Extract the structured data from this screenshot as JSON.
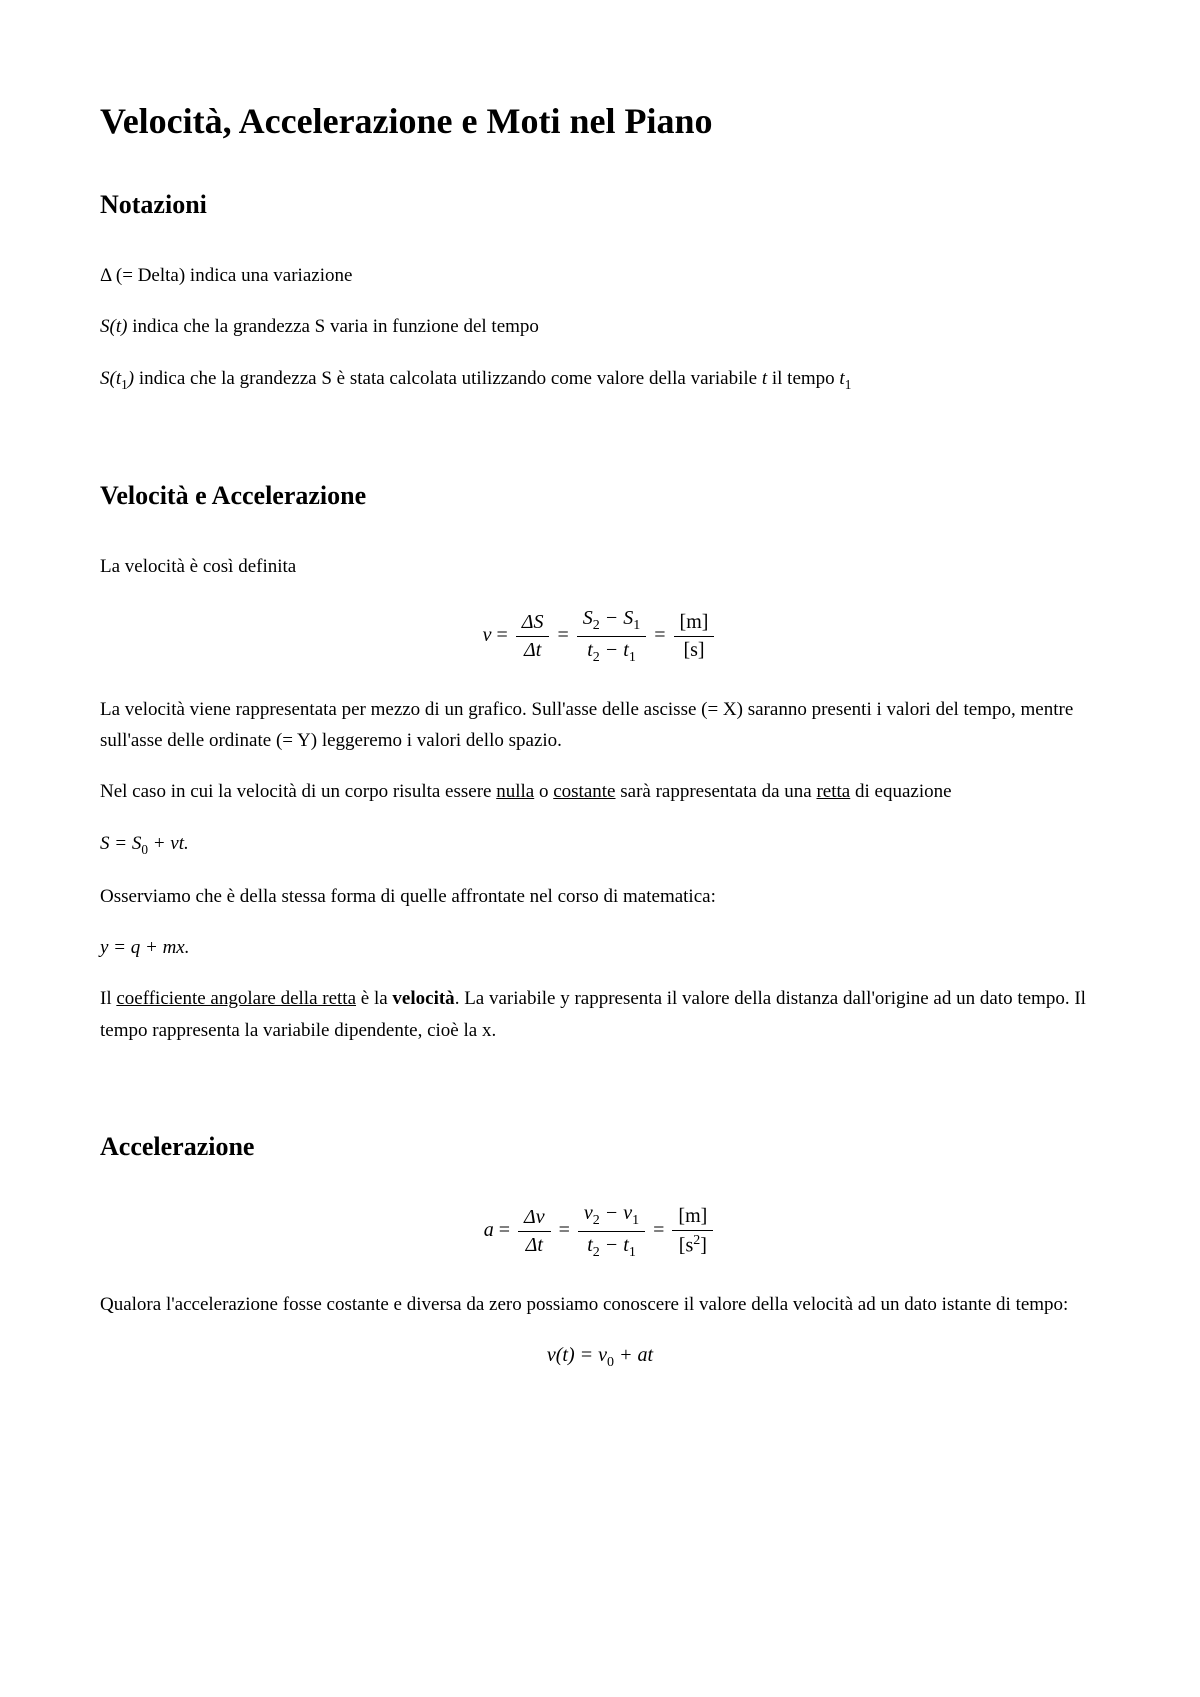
{
  "title": "Velocità, Accelerazione e Moti nel Piano",
  "sections": {
    "notazioni": {
      "heading": "Notazioni",
      "p1_prefix": "Δ (= Delta)  indica una variazione",
      "p2_a": "S",
      "p2_b": "(t)",
      "p2_text": " indica che la grandezza S varia in funzione del tempo",
      "p3_a": "S",
      "p3_b": "(t",
      "p3_sub": "1",
      "p3_c": ")",
      "p3_text_a": " indica che la grandezza S è stata calcolata utilizzando come valore della variabile ",
      "p3_var": "t",
      "p3_text_b": " il tempo ",
      "p3_var2": "t",
      "p3_sub2": "1"
    },
    "velocita": {
      "heading": "Velocità e Accelerazione",
      "intro": "La velocità è così definita",
      "eq": {
        "lhs": "v",
        "eq": " = ",
        "f1_num": "ΔS",
        "f1_den": "Δt",
        "f2_num_a": "S",
        "f2_num_sub1": "2",
        "f2_num_mid": " − S",
        "f2_num_sub2": "1",
        "f2_den_a": "t",
        "f2_den_sub1": "2",
        "f2_den_mid": " − t",
        "f2_den_sub2": "1",
        "f3_num": "[m]",
        "f3_den": "[s]"
      },
      "p1": "La velocità viene rappresentata per mezzo di un grafico. Sull'asse delle ascisse (= X) saranno presenti i valori del tempo, mentre sull'asse delle ordinate (= Y) leggeremo i valori dello spazio.",
      "p2_a": "Nel caso in cui la velocità di un corpo risulta essere ",
      "p2_u1": "nulla",
      "p2_b": " o ",
      "p2_u2": "costante",
      "p2_c": " sarà rappresentata da una ",
      "p2_u3": "retta",
      "p2_d": " di equazione",
      "eq2_a": "S = S",
      "eq2_sub": "0",
      "eq2_b": " + vt.",
      "p3": "Osserviamo che è della stessa forma di quelle affrontate nel corso di matematica:",
      "eq3": "y = q + mx.",
      "p4_a": "Il ",
      "p4_u": "coefficiente angolare della retta",
      "p4_b": " è la ",
      "p4_bold": "velocità",
      "p4_c": ". La variabile y rappresenta il valore della distanza dall'origine ad un dato tempo. Il tempo rappresenta la variabile dipendente, cioè la x."
    },
    "accel": {
      "heading": "Accelerazione",
      "eq": {
        "lhs": "a",
        "eq": " = ",
        "f1_num": "Δv",
        "f1_den": "Δt",
        "f2_num_a": "v",
        "f2_num_sub1": "2",
        "f2_num_mid": " − v",
        "f2_num_sub2": "1",
        "f2_den_a": "t",
        "f2_den_sub1": "2",
        "f2_den_mid": " − t",
        "f2_den_sub2": "1",
        "f3_num": "[m]",
        "f3_den_a": "[s",
        "f3_den_sup": "2",
        "f3_den_b": "]"
      },
      "p1": "Qualora l'accelerazione fosse costante e diversa da zero possiamo conoscere il valore della velocità ad un dato istante di tempo:",
      "eq2_a": "v(t) = v",
      "eq2_sub": "0",
      "eq2_b": " + at"
    }
  }
}
